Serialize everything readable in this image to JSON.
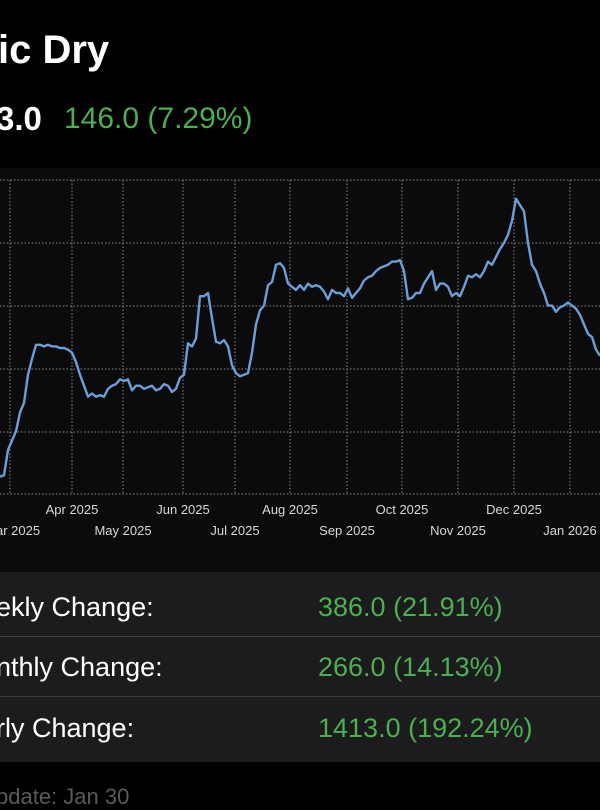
{
  "header": {
    "title": "ic Dry",
    "price": "3.0",
    "change": "146.0 (7.29%)"
  },
  "colors": {
    "line": "#6a9fd8",
    "grid": "#8a8a8a",
    "positive": "#4caf50",
    "background": "#000000",
    "panel": "#1c1c1e"
  },
  "chart_data": {
    "type": "line",
    "x_labels_top": [
      "Apr 2025",
      "Jun 2025",
      "Aug 2025",
      "Oct 2025",
      "Dec 2025"
    ],
    "x_labels_bottom": [
      "ar 2025",
      "May 2025",
      "Jul 2025",
      "Sep 2025",
      "Nov 2025",
      "Jan 2026"
    ],
    "grid": true,
    "series": [
      {
        "values": [
          [
            0,
            0.945
          ],
          [
            4,
            0.94
          ],
          [
            8,
            0.86
          ],
          [
            12,
            0.83
          ],
          [
            16,
            0.8
          ],
          [
            20,
            0.74
          ],
          [
            24,
            0.71
          ],
          [
            28,
            0.62
          ],
          [
            32,
            0.57
          ],
          [
            36,
            0.525
          ],
          [
            40,
            0.525
          ],
          [
            44,
            0.53
          ],
          [
            48,
            0.525
          ],
          [
            52,
            0.53
          ],
          [
            56,
            0.53
          ],
          [
            60,
            0.535
          ],
          [
            64,
            0.535
          ],
          [
            68,
            0.54
          ],
          [
            72,
            0.55
          ],
          [
            76,
            0.58
          ],
          [
            80,
            0.62
          ],
          [
            84,
            0.655
          ],
          [
            88,
            0.69
          ],
          [
            92,
            0.68
          ],
          [
            96,
            0.69
          ],
          [
            100,
            0.685
          ],
          [
            104,
            0.69
          ],
          [
            108,
            0.665
          ],
          [
            112,
            0.655
          ],
          [
            116,
            0.65
          ],
          [
            120,
            0.635
          ],
          [
            124,
            0.64
          ],
          [
            128,
            0.635
          ],
          [
            132,
            0.67
          ],
          [
            136,
            0.655
          ],
          [
            140,
            0.655
          ],
          [
            144,
            0.665
          ],
          [
            148,
            0.66
          ],
          [
            152,
            0.655
          ],
          [
            156,
            0.67
          ],
          [
            160,
            0.665
          ],
          [
            164,
            0.65
          ],
          [
            168,
            0.655
          ],
          [
            172,
            0.675
          ],
          [
            176,
            0.665
          ],
          [
            180,
            0.63
          ],
          [
            184,
            0.62
          ],
          [
            188,
            0.52
          ],
          [
            192,
            0.53
          ],
          [
            196,
            0.505
          ],
          [
            200,
            0.37
          ],
          [
            204,
            0.37
          ],
          [
            208,
            0.36
          ],
          [
            212,
            0.44
          ],
          [
            216,
            0.515
          ],
          [
            220,
            0.52
          ],
          [
            224,
            0.51
          ],
          [
            228,
            0.53
          ],
          [
            232,
            0.59
          ],
          [
            236,
            0.615
          ],
          [
            240,
            0.625
          ],
          [
            244,
            0.62
          ],
          [
            248,
            0.615
          ],
          [
            252,
            0.55
          ],
          [
            256,
            0.46
          ],
          [
            260,
            0.415
          ],
          [
            264,
            0.4
          ],
          [
            268,
            0.335
          ],
          [
            272,
            0.325
          ],
          [
            276,
            0.27
          ],
          [
            280,
            0.265
          ],
          [
            284,
            0.28
          ],
          [
            288,
            0.33
          ],
          [
            292,
            0.34
          ],
          [
            296,
            0.35
          ],
          [
            300,
            0.335
          ],
          [
            304,
            0.35
          ],
          [
            308,
            0.33
          ],
          [
            312,
            0.34
          ],
          [
            316,
            0.335
          ],
          [
            320,
            0.34
          ],
          [
            324,
            0.355
          ],
          [
            328,
            0.38
          ],
          [
            332,
            0.35
          ],
          [
            336,
            0.36
          ],
          [
            340,
            0.36
          ],
          [
            344,
            0.37
          ],
          [
            348,
            0.345
          ],
          [
            352,
            0.375
          ],
          [
            356,
            0.36
          ],
          [
            360,
            0.345
          ],
          [
            364,
            0.32
          ],
          [
            368,
            0.31
          ],
          [
            372,
            0.305
          ],
          [
            376,
            0.29
          ],
          [
            380,
            0.28
          ],
          [
            384,
            0.275
          ],
          [
            388,
            0.27
          ],
          [
            392,
            0.26
          ],
          [
            396,
            0.26
          ],
          [
            400,
            0.255
          ],
          [
            404,
            0.29
          ],
          [
            408,
            0.38
          ],
          [
            412,
            0.375
          ],
          [
            416,
            0.36
          ],
          [
            420,
            0.36
          ],
          [
            424,
            0.33
          ],
          [
            428,
            0.31
          ],
          [
            432,
            0.29
          ],
          [
            436,
            0.35
          ],
          [
            440,
            0.33
          ],
          [
            444,
            0.33
          ],
          [
            448,
            0.34
          ],
          [
            452,
            0.37
          ],
          [
            456,
            0.36
          ],
          [
            460,
            0.37
          ],
          [
            464,
            0.34
          ],
          [
            468,
            0.305
          ],
          [
            472,
            0.31
          ],
          [
            476,
            0.3
          ],
          [
            480,
            0.31
          ],
          [
            484,
            0.29
          ],
          [
            488,
            0.26
          ],
          [
            492,
            0.27
          ],
          [
            496,
            0.245
          ],
          [
            500,
            0.22
          ],
          [
            504,
            0.2
          ],
          [
            508,
            0.175
          ],
          [
            512,
            0.13
          ],
          [
            516,
            0.06
          ],
          [
            520,
            0.08
          ],
          [
            524,
            0.1
          ],
          [
            528,
            0.2
          ],
          [
            532,
            0.27
          ],
          [
            536,
            0.29
          ],
          [
            540,
            0.33
          ],
          [
            544,
            0.36
          ],
          [
            548,
            0.4
          ],
          [
            552,
            0.4
          ],
          [
            556,
            0.42
          ],
          [
            560,
            0.405
          ],
          [
            564,
            0.4
          ],
          [
            568,
            0.39
          ],
          [
            572,
            0.4
          ],
          [
            576,
            0.41
          ],
          [
            580,
            0.43
          ],
          [
            584,
            0.46
          ],
          [
            588,
            0.49
          ],
          [
            592,
            0.5
          ],
          [
            596,
            0.54
          ],
          [
            600,
            0.56
          ]
        ]
      }
    ]
  },
  "stats": {
    "rows": [
      {
        "label": "ekly Change:",
        "value": "386.0 (21.91%)"
      },
      {
        "label": "nthly Change:",
        "value": "266.0 (14.13%)"
      },
      {
        "label": "rly Change:",
        "value": "1413.0 (192.24%)"
      }
    ]
  },
  "footer": {
    "text": "pdate: Jan 30"
  }
}
